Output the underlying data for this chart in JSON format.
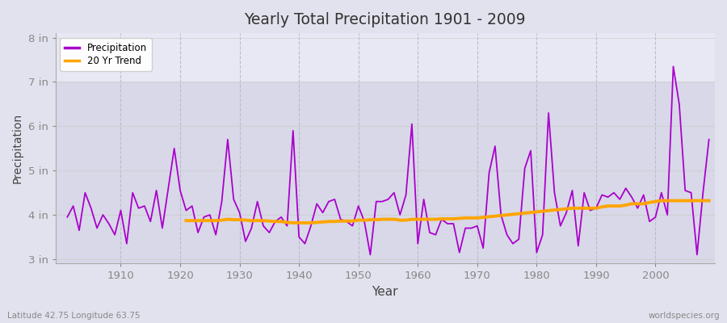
{
  "title": "Yearly Total Precipitation 1901 - 2009",
  "xlabel": "Year",
  "ylabel": "Precipitation",
  "subtitle_left": "Latitude 42.75 Longitude 63.75",
  "subtitle_right": "worldspecies.org",
  "precip_color": "#AA00CC",
  "trend_color": "#FFA500",
  "fig_bg": "#E8E8F0",
  "plot_bg_lower": "#DCDCE8",
  "plot_bg_upper": "#E8E8F2",
  "ylim": [
    2.9,
    8.1
  ],
  "yticks": [
    3,
    4,
    5,
    6,
    7,
    8
  ],
  "ytick_labels": [
    "3 in",
    "4 in",
    "5 in",
    "6 in",
    "7 in",
    "8 in"
  ],
  "xlim": [
    1899,
    2010
  ],
  "xticks": [
    1910,
    1920,
    1930,
    1940,
    1950,
    1960,
    1970,
    1980,
    1990,
    2000
  ],
  "years": [
    1901,
    1902,
    1903,
    1904,
    1905,
    1906,
    1907,
    1908,
    1909,
    1910,
    1911,
    1912,
    1913,
    1914,
    1915,
    1916,
    1917,
    1918,
    1919,
    1920,
    1921,
    1922,
    1923,
    1924,
    1925,
    1926,
    1927,
    1928,
    1929,
    1930,
    1931,
    1932,
    1933,
    1934,
    1935,
    1936,
    1937,
    1938,
    1939,
    1940,
    1941,
    1942,
    1943,
    1944,
    1945,
    1946,
    1947,
    1948,
    1949,
    1950,
    1951,
    1952,
    1953,
    1954,
    1955,
    1956,
    1957,
    1958,
    1959,
    1960,
    1961,
    1962,
    1963,
    1964,
    1965,
    1966,
    1967,
    1968,
    1969,
    1970,
    1971,
    1972,
    1973,
    1974,
    1975,
    1976,
    1977,
    1978,
    1979,
    1980,
    1981,
    1982,
    1983,
    1984,
    1985,
    1986,
    1987,
    1988,
    1989,
    1990,
    1991,
    1992,
    1993,
    1994,
    1995,
    1996,
    1997,
    1998,
    1999,
    2000,
    2001,
    2002,
    2003,
    2004,
    2005,
    2006,
    2007,
    2008,
    2009
  ],
  "precipitation": [
    3.95,
    4.2,
    3.65,
    4.5,
    4.15,
    3.7,
    4.0,
    3.8,
    3.55,
    4.1,
    3.35,
    4.5,
    4.15,
    4.2,
    3.85,
    4.55,
    3.7,
    4.6,
    5.5,
    4.55,
    4.1,
    4.2,
    3.6,
    3.95,
    4.0,
    3.55,
    4.3,
    5.7,
    4.35,
    4.05,
    3.4,
    3.7,
    4.3,
    3.75,
    3.6,
    3.85,
    3.95,
    3.75,
    5.9,
    3.5,
    3.35,
    3.75,
    4.25,
    4.05,
    4.3,
    4.35,
    3.9,
    3.85,
    3.75,
    4.2,
    3.85,
    3.1,
    4.3,
    4.3,
    4.35,
    4.5,
    4.0,
    4.45,
    6.05,
    3.35,
    4.35,
    3.6,
    3.55,
    3.9,
    3.8,
    3.8,
    3.15,
    3.7,
    3.7,
    3.75,
    3.25,
    4.95,
    5.55,
    4.0,
    3.55,
    3.35,
    3.45,
    5.05,
    5.45,
    3.15,
    3.55,
    6.3,
    4.5,
    3.75,
    4.05,
    4.55,
    3.3,
    4.5,
    4.1,
    4.15,
    4.45,
    4.4,
    4.5,
    4.35,
    4.6,
    4.4,
    4.15,
    4.45,
    3.85,
    3.95,
    4.5,
    4.0,
    7.35,
    6.5,
    4.55,
    4.5,
    3.1,
    4.5,
    5.7
  ],
  "trend_years": [
    1921,
    1922,
    1923,
    1924,
    1925,
    1926,
    1927,
    1928,
    1929,
    1930,
    1931,
    1932,
    1933,
    1934,
    1935,
    1936,
    1937,
    1938,
    1939,
    1940,
    1941,
    1942,
    1943,
    1944,
    1945,
    1946,
    1947,
    1948,
    1949,
    1950,
    1951,
    1952,
    1953,
    1954,
    1955,
    1956,
    1957,
    1958,
    1959,
    1960,
    1961,
    1962,
    1963,
    1964,
    1965,
    1966,
    1967,
    1968,
    1969,
    1970,
    1986,
    1987,
    1988,
    1989,
    1990,
    1991,
    1992,
    1993,
    1994,
    1995,
    1996,
    1997,
    1998,
    1999,
    2000,
    2001,
    2002,
    2003,
    2004,
    2005,
    2006,
    2007,
    2008,
    2009
  ],
  "trend_values": [
    3.87,
    3.87,
    3.87,
    3.87,
    3.87,
    3.87,
    3.88,
    3.9,
    3.89,
    3.89,
    3.88,
    3.87,
    3.87,
    3.87,
    3.86,
    3.85,
    3.85,
    3.83,
    3.82,
    3.82,
    3.82,
    3.82,
    3.83,
    3.84,
    3.85,
    3.85,
    3.86,
    3.86,
    3.86,
    3.88,
    3.88,
    3.89,
    3.89,
    3.9,
    3.9,
    3.9,
    3.88,
    3.88,
    3.9,
    3.9,
    3.9,
    3.9,
    3.9,
    3.91,
    3.91,
    3.91,
    3.92,
    3.93,
    3.93,
    3.93,
    4.15,
    4.15,
    4.15,
    4.15,
    4.15,
    4.18,
    4.2,
    4.2,
    4.2,
    4.22,
    4.25,
    4.25,
    4.25,
    4.28,
    4.3,
    4.32,
    4.32,
    4.32,
    4.32,
    4.32,
    4.32,
    4.32,
    4.32,
    4.32
  ]
}
